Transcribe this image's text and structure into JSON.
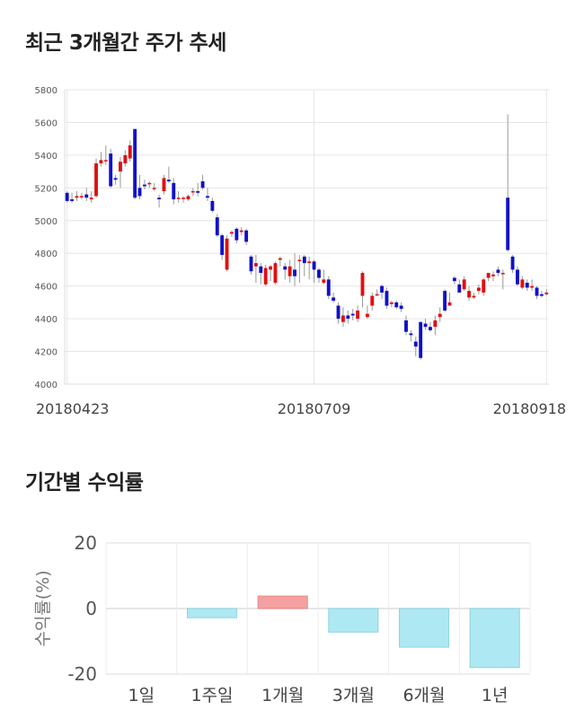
{
  "candle_title": "최근 3개월간 주가 추세",
  "returns_title": "기간별 수익률",
  "colors": {
    "up": "#e01010",
    "down": "#1010c8",
    "pos_bar": "#f4a0a0",
    "neg_bar": "#aee8f2",
    "neg_bar_edge": "#8fd3df",
    "grid": "#e6e6e6"
  },
  "chart_data": [
    {
      "type": "candlestick",
      "title": "최근 3개월간 주가 추세",
      "ylim": [
        4000,
        5800
      ],
      "yticks": [
        4000,
        4200,
        4400,
        4600,
        4800,
        5000,
        5200,
        5400,
        5600,
        5800
      ],
      "xtick_labels": [
        {
          "index": 0,
          "label": "20180423"
        },
        {
          "index": 51,
          "label": "20180709"
        },
        {
          "index": 99,
          "label": "20180918"
        }
      ],
      "grid": true,
      "candles": [
        [
          5170,
          5120,
          5180,
          5110
        ],
        [
          5130,
          5120,
          5170,
          5110
        ],
        [
          5140,
          5150,
          5180,
          5120
        ],
        [
          5150,
          5150,
          5170,
          5130
        ],
        [
          5160,
          5140,
          5200,
          5120
        ],
        [
          5130,
          5140,
          5180,
          5110
        ],
        [
          5150,
          5350,
          5380,
          5140
        ],
        [
          5350,
          5370,
          5420,
          5330
        ],
        [
          5370,
          5370,
          5460,
          5340
        ],
        [
          5410,
          5210,
          5440,
          5200
        ],
        [
          5260,
          5250,
          5280,
          5220
        ],
        [
          5300,
          5360,
          5390,
          5200
        ],
        [
          5350,
          5400,
          5430,
          5330
        ],
        [
          5380,
          5460,
          5490,
          5360
        ],
        [
          5560,
          5140,
          5560,
          5130
        ],
        [
          5200,
          5150,
          5280,
          5130
        ],
        [
          5220,
          5210,
          5250,
          5190
        ],
        [
          5230,
          5230,
          5240,
          5200
        ],
        [
          5200,
          5200,
          5230,
          5180
        ],
        [
          5140,
          5130,
          5160,
          5080
        ],
        [
          5180,
          5260,
          5280,
          5160
        ],
        [
          5250,
          5240,
          5330,
          5230
        ],
        [
          5230,
          5130,
          5260,
          5100
        ],
        [
          5140,
          5140,
          5180,
          5110
        ],
        [
          5140,
          5140,
          5150,
          5110
        ],
        [
          5130,
          5150,
          5160,
          5120
        ],
        [
          5180,
          5180,
          5200,
          5150
        ],
        [
          5180,
          5170,
          5230,
          5150
        ],
        [
          5240,
          5200,
          5280,
          5190
        ],
        [
          5150,
          5140,
          5200,
          5120
        ],
        [
          5120,
          5060,
          5140,
          5050
        ],
        [
          5020,
          4910,
          5040,
          4900
        ],
        [
          4910,
          4790,
          4920,
          4760
        ],
        [
          4700,
          4890,
          4910,
          4690
        ],
        [
          4920,
          4930,
          4940,
          4900
        ],
        [
          4950,
          4880,
          4960,
          4860
        ],
        [
          4930,
          4940,
          4960,
          4910
        ],
        [
          4940,
          4870,
          4950,
          4850
        ],
        [
          4780,
          4690,
          4790,
          4670
        ],
        [
          4720,
          4740,
          4790,
          4620
        ],
        [
          4720,
          4680,
          4740,
          4610
        ],
        [
          4610,
          4710,
          4730,
          4600
        ],
        [
          4700,
          4720,
          4730,
          4630
        ],
        [
          4620,
          4740,
          4750,
          4610
        ],
        [
          4760,
          4770,
          4780,
          4720
        ],
        [
          4720,
          4700,
          4740,
          4640
        ],
        [
          4660,
          4720,
          4760,
          4620
        ],
        [
          4700,
          4660,
          4800,
          4600
        ],
        [
          4760,
          4760,
          4790,
          4620
        ],
        [
          4780,
          4740,
          4790,
          4660
        ],
        [
          4740,
          4750,
          4780,
          4640
        ],
        [
          4750,
          4700,
          4760,
          4620
        ],
        [
          4700,
          4650,
          4710,
          4620
        ],
        [
          4620,
          4640,
          4700,
          4610
        ],
        [
          4640,
          4540,
          4660,
          4520
        ],
        [
          4530,
          4510,
          4560,
          4500
        ],
        [
          4480,
          4400,
          4500,
          4370
        ],
        [
          4380,
          4420,
          4470,
          4350
        ],
        [
          4420,
          4400,
          4450,
          4370
        ],
        [
          4430,
          4420,
          4460,
          4390
        ],
        [
          4400,
          4450,
          4480,
          4380
        ],
        [
          4540,
          4680,
          4690,
          4470
        ],
        [
          4410,
          4430,
          4480,
          4400
        ],
        [
          4480,
          4540,
          4560,
          4450
        ],
        [
          4550,
          4550,
          4580,
          4540
        ],
        [
          4600,
          4560,
          4610,
          4520
        ],
        [
          4570,
          4480,
          4590,
          4460
        ],
        [
          4490,
          4500,
          4510,
          4470
        ],
        [
          4500,
          4470,
          4510,
          4460
        ],
        [
          4480,
          4460,
          4500,
          4440
        ],
        [
          4390,
          4320,
          4420,
          4300
        ],
        [
          4310,
          4300,
          4330,
          4260
        ],
        [
          4260,
          4230,
          4290,
          4170
        ],
        [
          4380,
          4160,
          4380,
          4150
        ],
        [
          4370,
          4350,
          4400,
          4330
        ],
        [
          4350,
          4330,
          4380,
          4320
        ],
        [
          4350,
          4390,
          4420,
          4300
        ],
        [
          4410,
          4430,
          4470,
          4380
        ],
        [
          4570,
          4450,
          4580,
          4440
        ],
        [
          4480,
          4500,
          4560,
          4480
        ],
        [
          4650,
          4630,
          4660,
          4610
        ],
        [
          4610,
          4560,
          4640,
          4560
        ],
        [
          4580,
          4640,
          4660,
          4570
        ],
        [
          4530,
          4570,
          4600,
          4510
        ],
        [
          4530,
          4540,
          4560,
          4520
        ],
        [
          4570,
          4590,
          4610,
          4550
        ],
        [
          4560,
          4640,
          4650,
          4540
        ],
        [
          4650,
          4680,
          4680,
          4630
        ],
        [
          4660,
          4670,
          4690,
          4630
        ],
        [
          4700,
          4680,
          4720,
          4660
        ],
        [
          4680,
          4680,
          4700,
          4580
        ],
        [
          5140,
          4820,
          5650,
          4810
        ],
        [
          4780,
          4700,
          4790,
          4680
        ],
        [
          4700,
          4610,
          4720,
          4600
        ],
        [
          4590,
          4640,
          4660,
          4580
        ],
        [
          4620,
          4590,
          4640,
          4570
        ],
        [
          4590,
          4600,
          4640,
          4570
        ],
        [
          4590,
          4540,
          4600,
          4520
        ],
        [
          4550,
          4540,
          4570,
          4530
        ],
        [
          4550,
          4560,
          4580,
          4540
        ]
      ]
    },
    {
      "type": "bar",
      "title": "기간별 수익률",
      "ylabel": "수익률(%)",
      "ylim": [
        -20,
        20
      ],
      "yticks": [
        20,
        0,
        -20
      ],
      "grid": true,
      "categories": [
        "1일",
        "1주일",
        "1개월",
        "3개월",
        "6개월",
        "1년"
      ],
      "values": [
        0,
        -2.8,
        3.8,
        -7.2,
        -11.8,
        -18.0
      ]
    }
  ]
}
